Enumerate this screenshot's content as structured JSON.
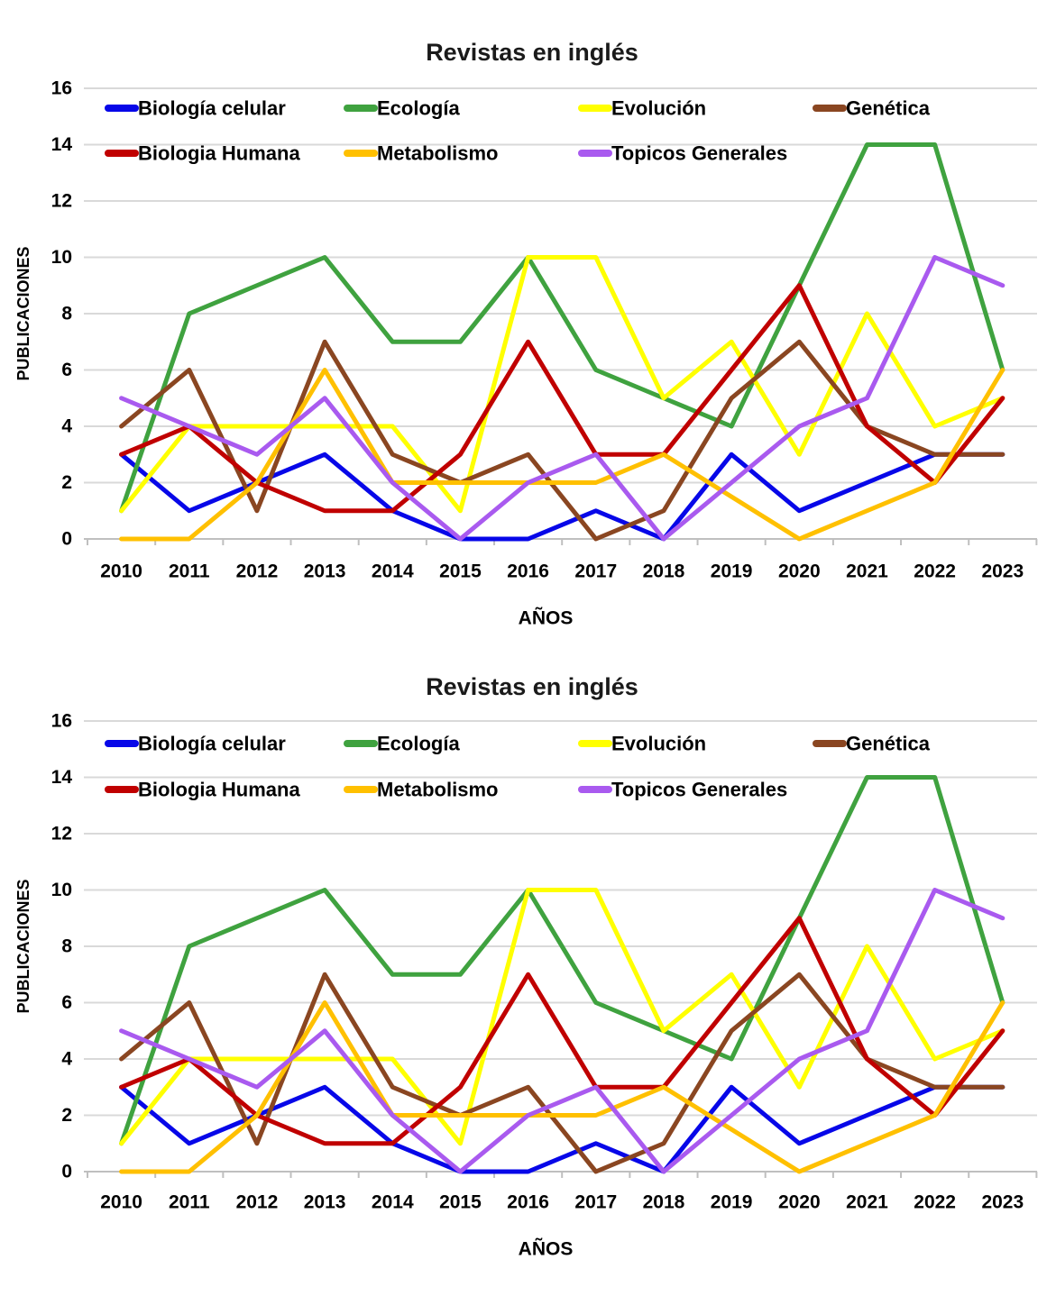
{
  "page": {
    "background": "#FFFFFF"
  },
  "chart_data": [
    {
      "type": "line",
      "title": "Revistas en inglés",
      "xlabel": "AÑOS",
      "ylabel": "PUBLICACIONES",
      "ylim": [
        0,
        16
      ],
      "ytick_step": 2,
      "grid": true,
      "legend_position": "inside-top, two rows",
      "categories": [
        "2010",
        "2011",
        "2012",
        "2013",
        "2014",
        "2015",
        "2016",
        "2017",
        "2018",
        "2019",
        "2020",
        "2021",
        "2022",
        "2023"
      ],
      "series": [
        {
          "name": "Biología celular",
          "color": "#0707E8",
          "values": [
            3,
            1,
            2,
            3,
            1,
            0,
            0,
            1,
            0,
            3,
            1,
            2,
            3,
            3
          ]
        },
        {
          "name": "Ecología",
          "color": "#3FA23F",
          "values": [
            1,
            8,
            9,
            10,
            7,
            7,
            10,
            6,
            5,
            4,
            9,
            14,
            14,
            6
          ]
        },
        {
          "name": "Evolución",
          "color": "#FFFF00",
          "values": [
            1,
            4,
            4,
            4,
            4,
            1,
            10,
            10,
            5,
            7,
            3,
            8,
            4,
            5
          ]
        },
        {
          "name": "Genética",
          "color": "#8A4621",
          "values": [
            4,
            6,
            1,
            7,
            3,
            2,
            3,
            0,
            1,
            5,
            7,
            4,
            3,
            3
          ]
        },
        {
          "name": "Biologia Humana",
          "color": "#C00000",
          "values": [
            3,
            4,
            2,
            1,
            1,
            3,
            7,
            3,
            3,
            6,
            9,
            4,
            2,
            5
          ]
        },
        {
          "name": "Metabolismo",
          "color": "#FFC000",
          "values": [
            0,
            0,
            2,
            6,
            2,
            2,
            2,
            2,
            3,
            1.5,
            0,
            1,
            2,
            6
          ]
        },
        {
          "name": "Topicos Generales",
          "color": "#A95AEF",
          "values": [
            5,
            4,
            3,
            5,
            2,
            0,
            2,
            3,
            0,
            2,
            4,
            5,
            10,
            9
          ]
        }
      ]
    },
    {
      "type": "line",
      "title": "Revistas en inglés",
      "xlabel": "AÑOS",
      "ylabel": "PUBLICACIONES",
      "ylim": [
        0,
        16
      ],
      "ytick_step": 2,
      "grid": true,
      "legend_position": "inside-top, two rows",
      "categories": [
        "2010",
        "2011",
        "2012",
        "2013",
        "2014",
        "2015",
        "2016",
        "2017",
        "2018",
        "2019",
        "2020",
        "2021",
        "2022",
        "2023"
      ],
      "series": [
        {
          "name": "Biología celular",
          "color": "#0707E8",
          "values": [
            3,
            1,
            2,
            3,
            1,
            0,
            0,
            1,
            0,
            3,
            1,
            2,
            3,
            3
          ]
        },
        {
          "name": "Ecología",
          "color": "#3FA23F",
          "values": [
            1,
            8,
            9,
            10,
            7,
            7,
            10,
            6,
            5,
            4,
            9,
            14,
            14,
            6
          ]
        },
        {
          "name": "Evolución",
          "color": "#FFFF00",
          "values": [
            1,
            4,
            4,
            4,
            4,
            1,
            10,
            10,
            5,
            7,
            3,
            8,
            4,
            5
          ]
        },
        {
          "name": "Genética",
          "color": "#8A4621",
          "values": [
            4,
            6,
            1,
            7,
            3,
            2,
            3,
            0,
            1,
            5,
            7,
            4,
            3,
            3
          ]
        },
        {
          "name": "Biologia Humana",
          "color": "#C00000",
          "values": [
            3,
            4,
            2,
            1,
            1,
            3,
            7,
            3,
            3,
            6,
            9,
            4,
            2,
            5
          ]
        },
        {
          "name": "Metabolismo",
          "color": "#FFC000",
          "values": [
            0,
            0,
            2,
            6,
            2,
            2,
            2,
            2,
            3,
            1.5,
            0,
            1,
            2,
            6
          ]
        },
        {
          "name": "Topicos Generales",
          "color": "#A95AEF",
          "values": [
            5,
            4,
            3,
            5,
            2,
            0,
            2,
            3,
            0,
            2,
            4,
            5,
            10,
            9
          ]
        }
      ]
    }
  ]
}
